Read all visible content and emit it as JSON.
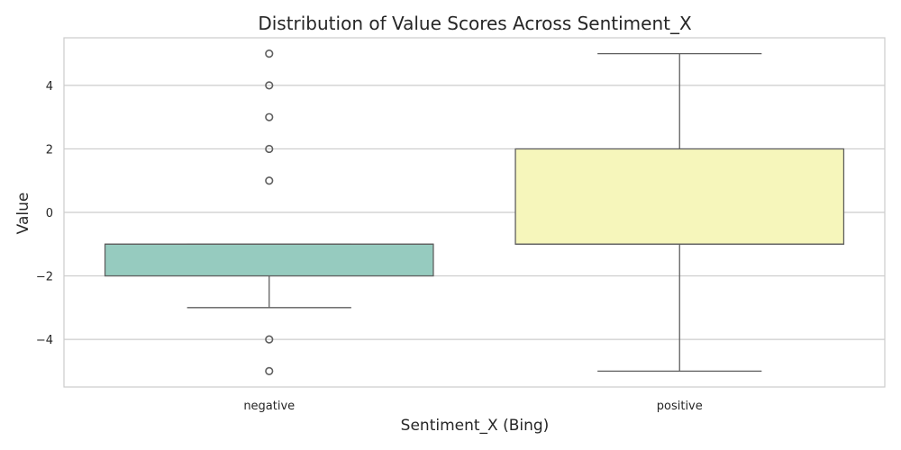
{
  "chart_data": {
    "type": "box",
    "title": "Distribution of Value Scores Across Sentiment_X",
    "xlabel": "Sentiment_X (Bing)",
    "ylabel": "Value",
    "ylim": [
      -5.5,
      5.5
    ],
    "yticks": [
      -4,
      -2,
      0,
      2,
      4
    ],
    "grid": "horizontal",
    "categories": [
      "negative",
      "positive"
    ],
    "boxes": [
      {
        "category": "negative",
        "whisker_low": -3,
        "q1": -2,
        "median": -1,
        "q3": -1,
        "whisker_high": -1,
        "outliers": [
          -5,
          -4,
          1,
          2,
          3,
          4,
          5
        ],
        "color": "#96cbbf"
      },
      {
        "category": "positive",
        "whisker_low": -5,
        "q1": -1,
        "median": -1,
        "q3": 2,
        "whisker_high": 5,
        "outliers": [],
        "color": "#f6f6bb"
      }
    ]
  }
}
